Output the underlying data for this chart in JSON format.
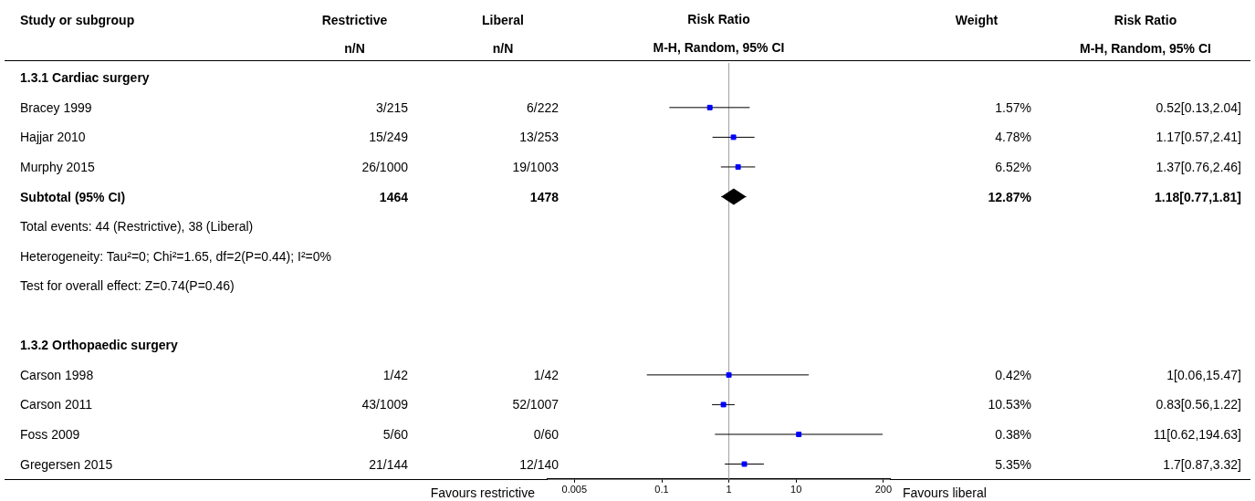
{
  "chart_data": [
    {
      "type": "other",
      "title": "Study or subgroup",
      "color": "#000000",
      "categories": [
        "1.3.1 Cardiac surgery",
        "Bracey 1999",
        "Hajjar 2010",
        "Murphy 2015",
        "Subtotal (95% CI)",
        "Total events: 44 (Restrictive), 38 (Liberal)",
        "Heterogeneity: Tau²=0; Chi²=1.65, df=2(P=0.44); I²=0%",
        "Test for overall effect: Z=0.74(P=0.46)",
        null,
        "1.3.2 Orthopaedic surgery",
        "Carson 1998",
        "Carson 2011",
        "Foss 2009",
        "Gregersen 2015"
      ]
    },
    {
      "type": "other",
      "title": "Restrictive",
      "subtitle": "n/N",
      "color": "#000000",
      "categories": [
        null,
        "3/215",
        "15/249",
        "26/1000",
        "1464",
        null,
        null,
        null,
        null,
        null,
        "1/42",
        "43/1009",
        "5/60",
        "21/144"
      ]
    },
    {
      "type": "other",
      "title": "Liberal",
      "subtitle": "n/N",
      "color": "#000000",
      "categories": [
        null,
        "6/222",
        "13/253",
        "19/1003",
        "1478",
        null,
        null,
        null,
        null,
        null,
        "1/42",
        "52/1007",
        "0/60",
        "12/140"
      ]
    },
    {
      "type": "scatter",
      "orientation": "horizontal",
      "title": "Risk Ratio",
      "subtitle": "M-H, Random, 95% CI",
      "categories": [
        null,
        null,
        null,
        null,
        null,
        null,
        null,
        null,
        null,
        null,
        null,
        null,
        null,
        null
      ],
      "series": [
        {
          "type": "scatter",
          "marker": "square",
          "color": "#0000ff",
          "values": [
            null,
            0.52,
            1.17,
            1.37,
            null,
            null,
            null,
            null,
            null,
            null,
            1,
            0.83,
            11,
            1.7
          ],
          "errors": [
            null,
            [
              0.13,
              2.04
            ],
            [
              0.57,
              2.41
            ],
            [
              0.76,
              2.46
            ],
            null,
            null,
            null,
            null,
            null,
            null,
            [
              0.06,
              15.47
            ],
            [
              0.56,
              1.22
            ],
            [
              0.62,
              194.63
            ],
            [
              0.87,
              3.32
            ]
          ]
        },
        {
          "type": "scatter",
          "marker": "diamond",
          "color": "#000000",
          "values": [
            null,
            null,
            null,
            null,
            1.18,
            null,
            null,
            null,
            null,
            null,
            null,
            null,
            null,
            null
          ],
          "errors": [
            null,
            null,
            null,
            null,
            [
              0.77,
              1.81
            ],
            null,
            null,
            null,
            null,
            null,
            null,
            null,
            null,
            null
          ]
        }
      ],
      "log": "x",
      "xlim": [
        0.002,
        250
      ],
      "xticks": [
        0.005,
        0.1,
        1,
        10,
        200
      ],
      "grid": false,
      "legend": false,
      "ref_lines": [
        {
          "axis": "x",
          "value": 1,
          "color": "#a0a0a0"
        }
      ],
      "annotations": [
        "Favours restrictive",
        "Favours liberal"
      ]
    },
    {
      "type": "other",
      "title": "Weight",
      "color": "#000000",
      "categories": [
        null,
        "1.57%",
        "4.78%",
        "6.52%",
        "12.87%",
        null,
        null,
        null,
        null,
        null,
        "0.42%",
        "10.53%",
        "0.38%",
        "5.35%"
      ]
    },
    {
      "type": "other",
      "title": "Risk Ratio",
      "subtitle": "M-H, Random, 95% CI",
      "color": "#000000",
      "categories": [
        null,
        "0.52[0.13,2.04]",
        "1.17[0.57,2.41]",
        "1.37[0.76,2.46]",
        "1.18[0.77,1.81]",
        null,
        null,
        null,
        null,
        null,
        "1[0.06,15.47]",
        "0.83[0.56,1.22]",
        "11[0.62,194.63]",
        "1.7[0.87,3.32]"
      ]
    }
  ]
}
